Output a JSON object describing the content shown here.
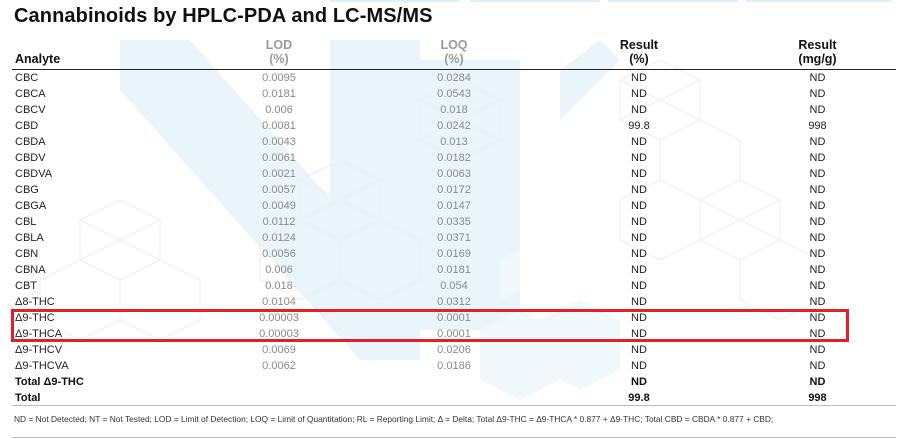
{
  "title": "Cannabinoids by HPLC-PDA and LC-MS/MS",
  "headers": {
    "analyte": "Analyte",
    "lod": "LOD",
    "lod_unit": "(%)",
    "loq": "LOQ",
    "loq_unit": "(%)",
    "result_pct": "Result",
    "result_pct_unit": "(%)",
    "result_mg": "Result",
    "result_mg_unit": "(mg/g)"
  },
  "rows": [
    {
      "analyte": "CBC",
      "lod": "0.0095",
      "loq": "0.0284",
      "pct": "ND",
      "mg": "ND"
    },
    {
      "analyte": "CBCA",
      "lod": "0.0181",
      "loq": "0.0543",
      "pct": "ND",
      "mg": "ND"
    },
    {
      "analyte": "CBCV",
      "lod": "0.006",
      "loq": "0.018",
      "pct": "ND",
      "mg": "ND"
    },
    {
      "analyte": "CBD",
      "lod": "0.0081",
      "loq": "0.0242",
      "pct": "99.8",
      "mg": "998"
    },
    {
      "analyte": "CBDA",
      "lod": "0.0043",
      "loq": "0.013",
      "pct": "ND",
      "mg": "ND"
    },
    {
      "analyte": "CBDV",
      "lod": "0.0061",
      "loq": "0.0182",
      "pct": "ND",
      "mg": "ND"
    },
    {
      "analyte": "CBDVA",
      "lod": "0.0021",
      "loq": "0.0063",
      "pct": "ND",
      "mg": "ND"
    },
    {
      "analyte": "CBG",
      "lod": "0.0057",
      "loq": "0.0172",
      "pct": "ND",
      "mg": "ND"
    },
    {
      "analyte": "CBGA",
      "lod": "0.0049",
      "loq": "0.0147",
      "pct": "ND",
      "mg": "ND"
    },
    {
      "analyte": "CBL",
      "lod": "0.0112",
      "loq": "0.0335",
      "pct": "ND",
      "mg": "ND"
    },
    {
      "analyte": "CBLA",
      "lod": "0.0124",
      "loq": "0.0371",
      "pct": "ND",
      "mg": "ND"
    },
    {
      "analyte": "CBN",
      "lod": "0.0056",
      "loq": "0.0169",
      "pct": "ND",
      "mg": "ND"
    },
    {
      "analyte": "CBNA",
      "lod": "0.006",
      "loq": "0.0181",
      "pct": "ND",
      "mg": "ND"
    },
    {
      "analyte": "CBT",
      "lod": "0.018",
      "loq": "0.054",
      "pct": "ND",
      "mg": "ND"
    },
    {
      "analyte": "Δ8-THC",
      "lod": "0.0104",
      "loq": "0.0312",
      "pct": "ND",
      "mg": "ND"
    },
    {
      "analyte": "Δ9-THC",
      "lod": "0.00003",
      "loq": "0.0001",
      "pct": "ND",
      "mg": "ND"
    },
    {
      "analyte": "Δ9-THCA",
      "lod": "0.00003",
      "loq": "0.0001",
      "pct": "ND",
      "mg": "ND"
    },
    {
      "analyte": "Δ9-THCV",
      "lod": "0.0069",
      "loq": "0.0206",
      "pct": "ND",
      "mg": "ND"
    },
    {
      "analyte": "Δ9-THCVA",
      "lod": "0.0062",
      "loq": "0.0186",
      "pct": "ND",
      "mg": "ND"
    }
  ],
  "totals": [
    {
      "analyte": "Total Δ9-THC",
      "pct": "ND",
      "mg": "ND"
    },
    {
      "analyte": "Total",
      "pct": "99.8",
      "mg": "998"
    }
  ],
  "footnote": "ND = Not Detected; NT = Not Tested; LOD = Limit of Detection; LOQ = Limit of Quantitation; RL = Reporting Limit; Δ = Delta; Total Δ9-THC = Δ9-THCA * 0.877 + Δ9-THC; Total CBD = CBDA * 0.877 + CBD;",
  "colors": {
    "highlight": "#e0202a",
    "watermark": "#e8f4fa"
  }
}
